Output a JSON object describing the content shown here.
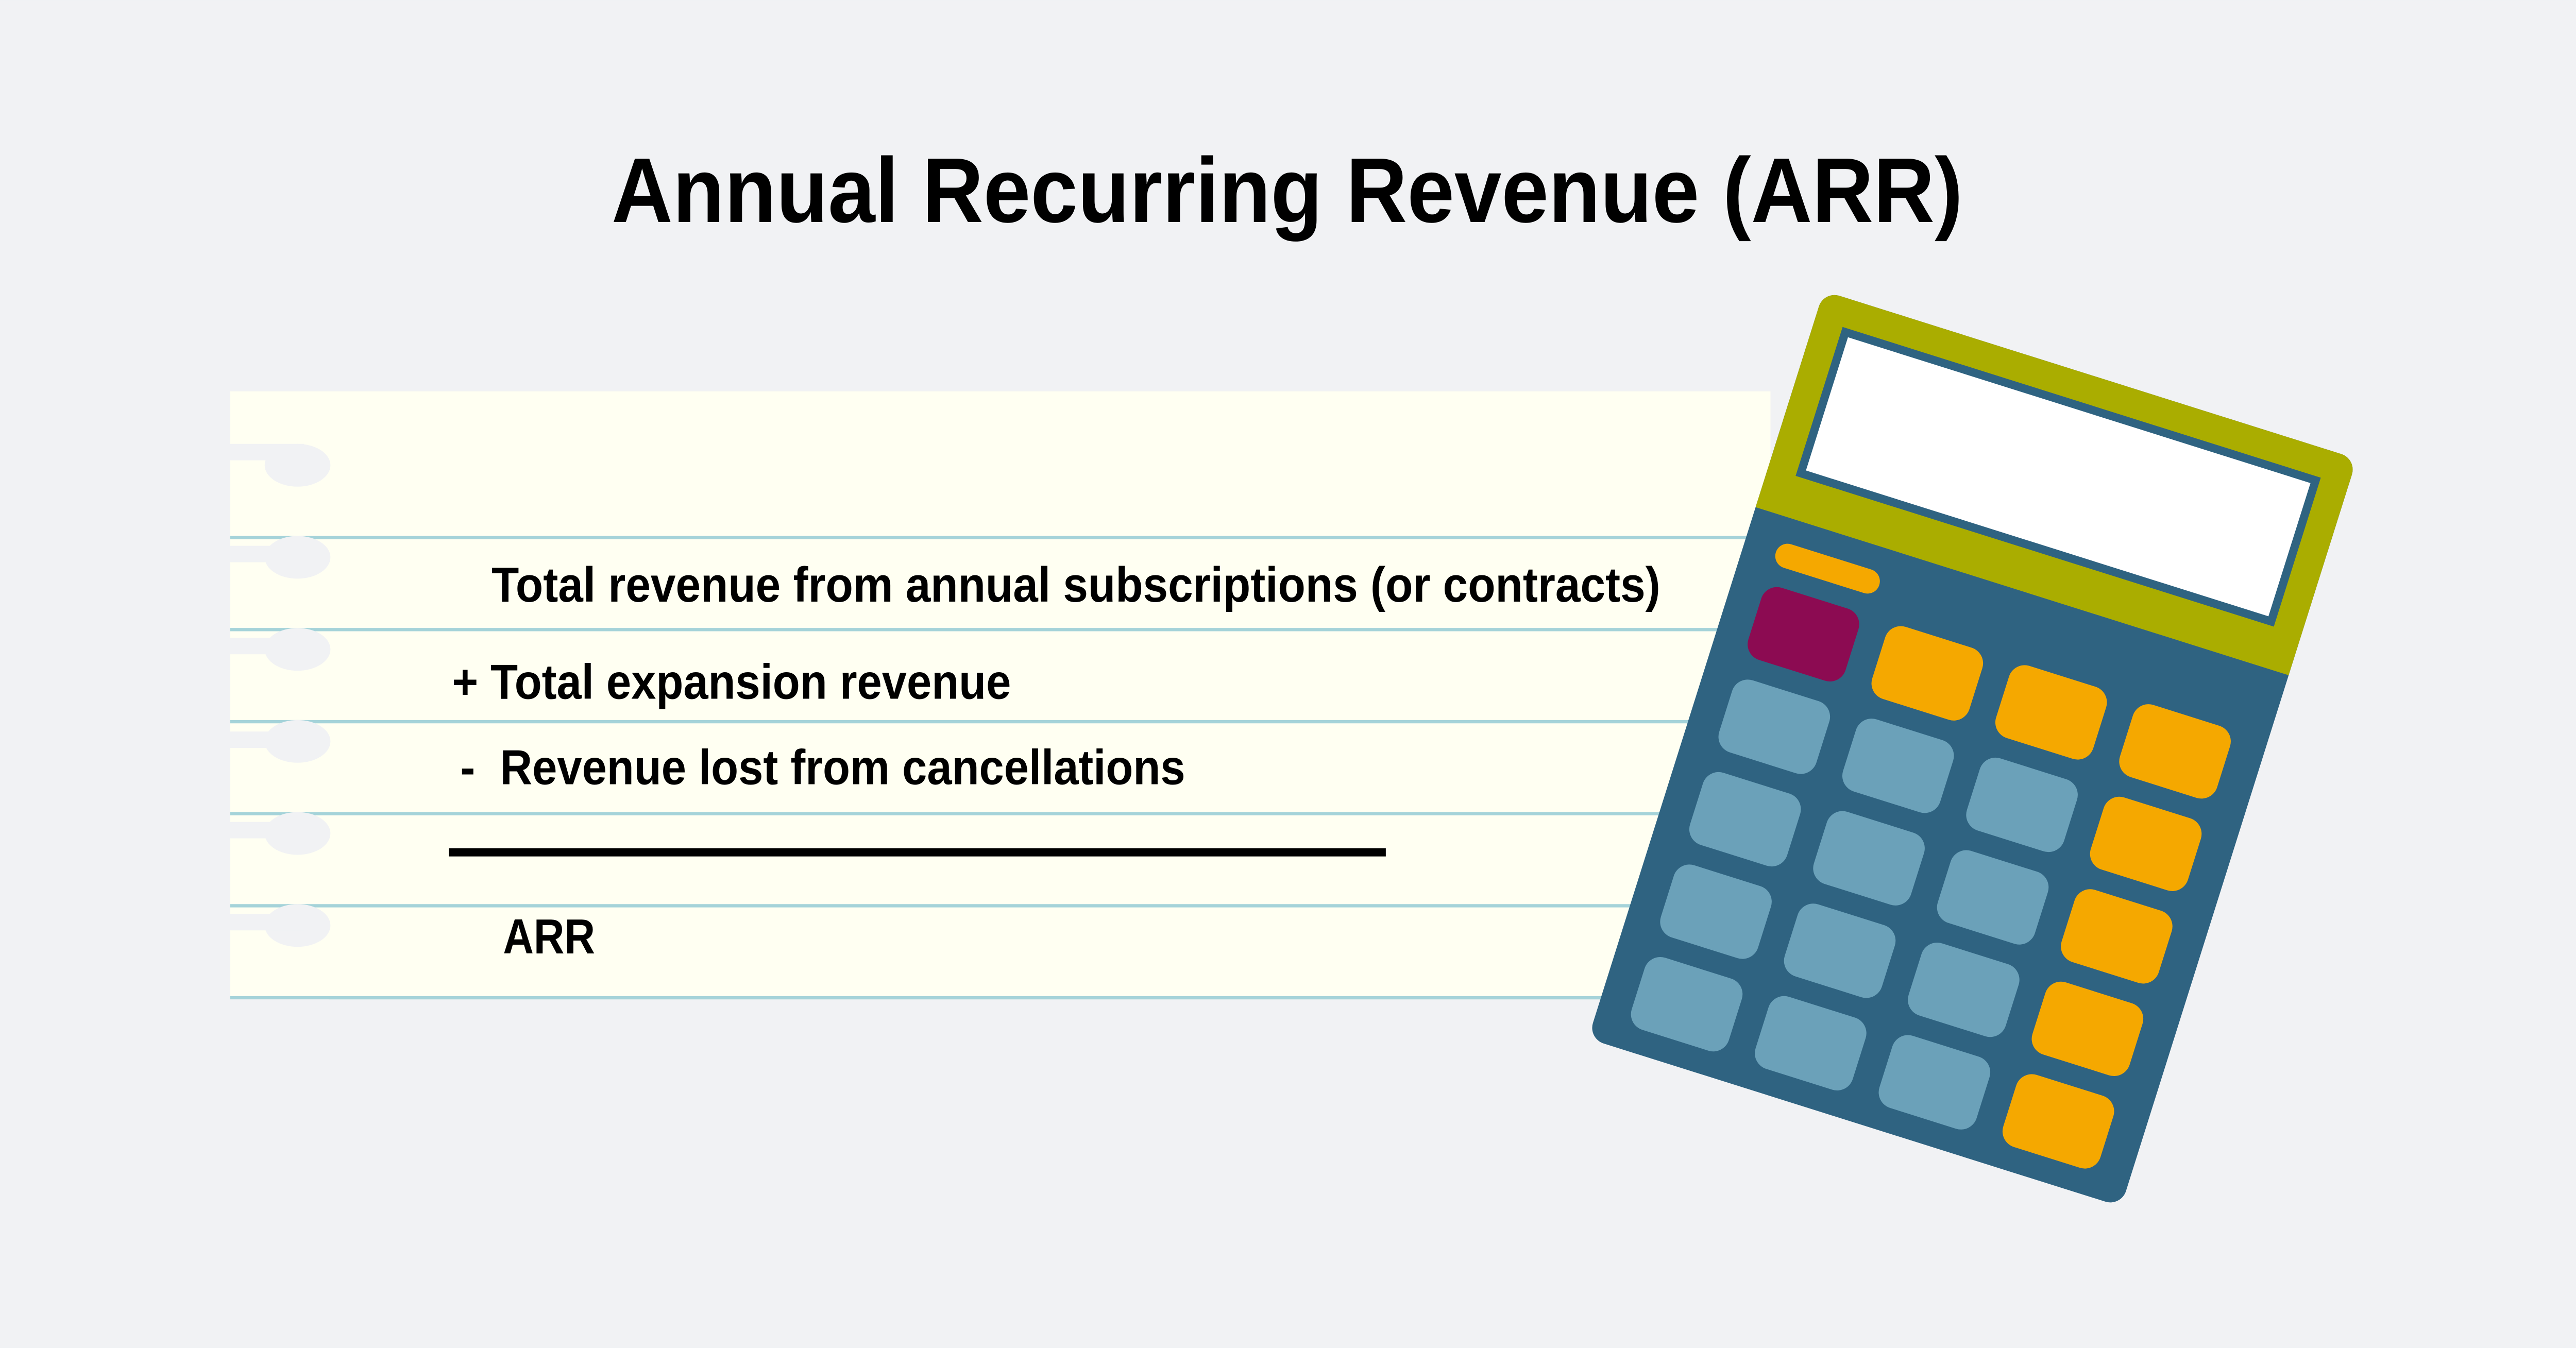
{
  "title": "Annual Recurring Revenue (ARR)",
  "formula": {
    "line1": "Total revenue from annual subscriptions (or contracts)",
    "line2": "+ Total expansion revenue",
    "line3": "-  Revenue lost from cancellations",
    "result": "ARR"
  },
  "icons": {
    "paper": "notebook-paper-icon",
    "calculator": "calculator-icon"
  },
  "colors": {
    "background": "#f1f2f4",
    "paper": "#fffff2",
    "paper_lines": "#a5d3d9",
    "calculator_body": "#2f6381",
    "calculator_top": "#aaad00",
    "key_blue": "#6ba1b9",
    "key_orange": "#f5a800",
    "key_magenta": "#8c0b52"
  }
}
